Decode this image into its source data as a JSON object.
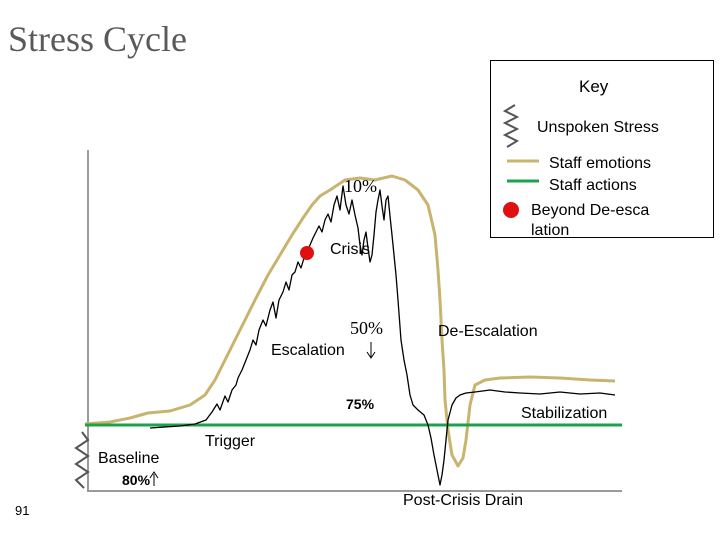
{
  "title": "Stress Cycle",
  "slide_number": "91",
  "key": {
    "heading": "Key",
    "items": [
      {
        "label": "Unspoken Stress",
        "icon": "squiggle-icon"
      },
      {
        "label": "Staff emotions",
        "color": "#c8b46e"
      },
      {
        "label": "Staff actions",
        "color": "#1aa34a"
      },
      {
        "label": "Beyond De-escalation",
        "color": "#e01010"
      }
    ]
  },
  "phases": {
    "baseline": "Baseline",
    "trigger": "Trigger",
    "escalation": "Escalation",
    "crisis": "Crisis",
    "de_escalation": "De-Escalation",
    "stabilization": "Stabilization",
    "post_crisis": "Post-Crisis Drain"
  },
  "annotations": {
    "pct_10": "10%",
    "pct_50": "50%",
    "pct_75": "75%",
    "pct_80": "80%"
  },
  "colors": {
    "emotions": "#c8b46e",
    "actions": "#1aa34a",
    "crisis_dot": "#e01010",
    "title": "#5a5a5a"
  }
}
